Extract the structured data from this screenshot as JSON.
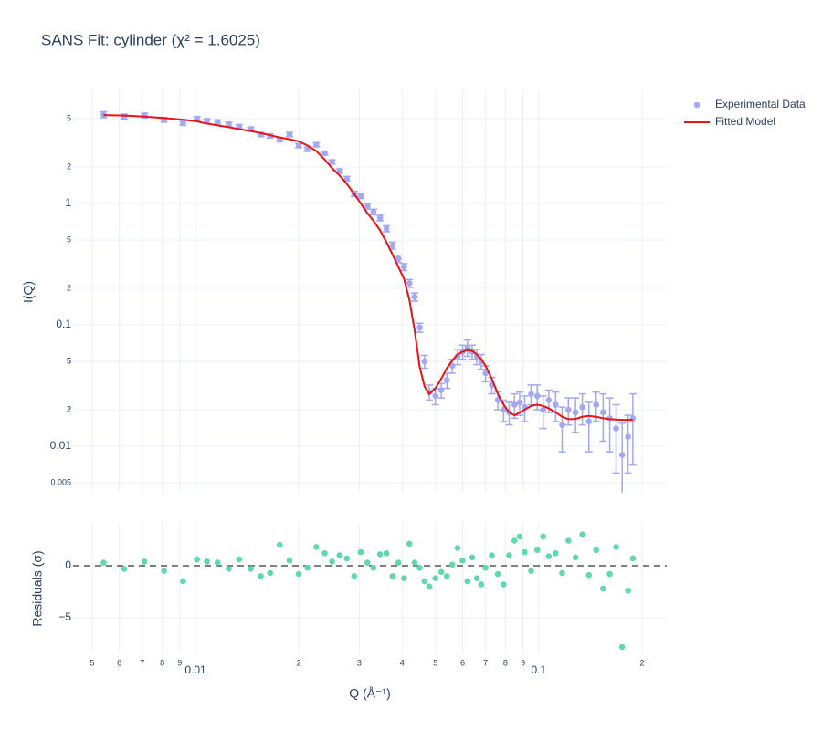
{
  "chart_data": [
    {
      "type": "scatter",
      "title": "SANS Fit: cylinder (χ² = 1.6025)",
      "ylabel": "I(Q)",
      "xscale": "log",
      "yscale": "log",
      "grid": true,
      "legend": "top-right-outside",
      "xlim": [
        0.0044,
        0.236
      ],
      "ylim": [
        0.00414,
        8.7
      ],
      "yticks": [
        0.005,
        {
          "value": 0.02,
          "label": "2"
        },
        {
          "value": 0.05,
          "label": "5"
        },
        0.01,
        {
          "value": 0.02,
          "label": "2"
        },
        {
          "value": 0.05,
          "label": "5"
        },
        0.1,
        {
          "value": 0.2,
          "label": "2"
        },
        {
          "value": 0.5,
          "label": "5"
        },
        1,
        2,
        5
      ],
      "x": [
        0.0054,
        0.0062,
        0.0071,
        0.0081,
        0.0092,
        0.0101,
        0.0108,
        0.0116,
        0.0125,
        0.0134,
        0.0145,
        0.0155,
        0.0165,
        0.0176,
        0.0188,
        0.02,
        0.0212,
        0.0225,
        0.0238,
        0.025,
        0.0263,
        0.0276,
        0.029,
        0.0303,
        0.0317,
        0.033,
        0.0345,
        0.036,
        0.0375,
        0.039,
        0.0405,
        0.042,
        0.0435,
        0.045,
        0.0465,
        0.048,
        0.05,
        0.052,
        0.054,
        0.056,
        0.058,
        0.06,
        0.062,
        0.064,
        0.066,
        0.068,
        0.07,
        0.073,
        0.076,
        0.079,
        0.082,
        0.085,
        0.088,
        0.091,
        0.095,
        0.099,
        0.103,
        0.107,
        0.112,
        0.117,
        0.122,
        0.128,
        0.134,
        0.14,
        0.147,
        0.154,
        0.161,
        0.168,
        0.175,
        0.182,
        0.188
      ],
      "series": [
        {
          "name": "Experimental Data",
          "mode": "markers",
          "color": "#a3a7f4",
          "values": [
            5.4,
            5.2,
            5.3,
            4.9,
            4.6,
            5.0,
            4.8,
            4.7,
            4.5,
            4.3,
            4.1,
            3.7,
            3.6,
            3.35,
            3.7,
            3.0,
            2.8,
            3.05,
            2.6,
            2.2,
            1.85,
            1.6,
            1.2,
            1.15,
            0.95,
            0.85,
            0.76,
            0.62,
            0.45,
            0.35,
            0.3,
            0.22,
            0.17,
            0.095,
            0.05,
            0.028,
            0.026,
            0.029,
            0.035,
            0.046,
            0.055,
            0.06,
            0.065,
            0.06,
            0.055,
            0.05,
            0.04,
            0.032,
            0.024,
            0.02,
            0.019,
            0.022,
            0.023,
            0.021,
            0.027,
            0.026,
            0.02,
            0.024,
            0.022,
            0.015,
            0.02,
            0.019,
            0.021,
            0.016,
            0.022,
            0.019,
            0.017,
            0.014,
            0.0085,
            0.012,
            0.017
          ],
          "errors": [
            0.3,
            0.25,
            0.25,
            0.22,
            0.2,
            0.2,
            0.2,
            0.18,
            0.18,
            0.17,
            0.16,
            0.15,
            0.14,
            0.13,
            0.15,
            0.12,
            0.11,
            0.12,
            0.1,
            0.09,
            0.08,
            0.07,
            0.06,
            0.055,
            0.05,
            0.045,
            0.04,
            0.035,
            0.03,
            0.025,
            0.02,
            0.016,
            0.013,
            0.008,
            0.006,
            0.004,
            0.004,
            0.004,
            0.005,
            0.006,
            0.008,
            0.008,
            0.01,
            0.008,
            0.008,
            0.007,
            0.006,
            0.005,
            0.004,
            0.004,
            0.004,
            0.005,
            0.005,
            0.005,
            0.005,
            0.006,
            0.006,
            0.005,
            0.006,
            0.006,
            0.005,
            0.006,
            0.006,
            0.007,
            0.006,
            0.008,
            0.008,
            0.008,
            0.007,
            0.006,
            0.01
          ]
        },
        {
          "name": "Fitted Model",
          "mode": "lines",
          "color": "#ee1111",
          "values": [
            5.35,
            5.3,
            5.2,
            5.05,
            4.9,
            4.75,
            4.55,
            4.4,
            4.25,
            4.1,
            3.95,
            3.8,
            3.65,
            3.5,
            3.38,
            3.25,
            3.0,
            2.7,
            2.3,
            1.95,
            1.7,
            1.45,
            1.2,
            1.0,
            0.83,
            0.72,
            0.6,
            0.48,
            0.38,
            0.3,
            0.24,
            0.16,
            0.09,
            0.045,
            0.031,
            0.027,
            0.03,
            0.036,
            0.044,
            0.051,
            0.057,
            0.06,
            0.062,
            0.061,
            0.057,
            0.052,
            0.046,
            0.036,
            0.027,
            0.022,
            0.019,
            0.018,
            0.019,
            0.02,
            0.0215,
            0.022,
            0.0215,
            0.0205,
            0.019,
            0.0175,
            0.0167,
            0.0168,
            0.0175,
            0.0178,
            0.0175,
            0.017,
            0.0167,
            0.0166,
            0.0165,
            0.0165,
            0.0165
          ]
        }
      ]
    },
    {
      "type": "scatter",
      "xlabel": "Q (Å⁻¹)",
      "ylabel": "Residuals (σ)",
      "xscale": "log",
      "grid": true,
      "xlim": [
        0.0044,
        0.236
      ],
      "ylim": [
        -8.5,
        4.2
      ],
      "xticks": [
        {
          "value": 0.005,
          "label": "5"
        },
        {
          "value": 0.006,
          "label": "6"
        },
        {
          "value": 0.007,
          "label": "7"
        },
        {
          "value": 0.008,
          "label": "8"
        },
        {
          "value": 0.009,
          "label": "9"
        },
        0.01,
        {
          "value": 0.02,
          "label": "2"
        },
        {
          "value": 0.03,
          "label": "3"
        },
        {
          "value": 0.04,
          "label": "4"
        },
        {
          "value": 0.05,
          "label": "5"
        },
        {
          "value": 0.06,
          "label": "6"
        },
        {
          "value": 0.07,
          "label": "7"
        },
        {
          "value": 0.08,
          "label": "8"
        },
        {
          "value": 0.09,
          "label": "9"
        },
        0.1,
        {
          "value": 0.2,
          "label": "2"
        }
      ],
      "yticks": [
        {
          "value": -5,
          "label": "−5"
        },
        0
      ],
      "reference_line": {
        "y": 0,
        "color": "#555555",
        "dash": true
      },
      "x": [
        0.0054,
        0.0062,
        0.0071,
        0.0081,
        0.0092,
        0.0101,
        0.0108,
        0.0116,
        0.0125,
        0.0134,
        0.0145,
        0.0155,
        0.0165,
        0.0176,
        0.0188,
        0.02,
        0.0212,
        0.0225,
        0.0238,
        0.025,
        0.0263,
        0.0276,
        0.029,
        0.0303,
        0.0317,
        0.033,
        0.0345,
        0.036,
        0.0375,
        0.039,
        0.0405,
        0.042,
        0.0435,
        0.045,
        0.0465,
        0.048,
        0.05,
        0.052,
        0.054,
        0.056,
        0.058,
        0.06,
        0.062,
        0.064,
        0.066,
        0.068,
        0.07,
        0.073,
        0.076,
        0.079,
        0.082,
        0.085,
        0.088,
        0.091,
        0.095,
        0.099,
        0.103,
        0.107,
        0.112,
        0.117,
        0.122,
        0.128,
        0.134,
        0.14,
        0.147,
        0.154,
        0.161,
        0.168,
        0.175,
        0.182,
        0.188
      ],
      "series": [
        {
          "mode": "markers",
          "color": "#5fd9ab",
          "values": [
            0.3,
            -0.3,
            0.4,
            -0.5,
            -1.5,
            0.6,
            0.4,
            0.3,
            -0.3,
            0.6,
            -0.3,
            -1.0,
            -0.7,
            2.0,
            0.5,
            -0.8,
            -0.2,
            1.8,
            1.2,
            0.4,
            1.0,
            0.7,
            -1.0,
            1.3,
            0.3,
            -0.2,
            1.1,
            1.2,
            -1.0,
            0.3,
            -1.2,
            2.1,
            0.3,
            -0.2,
            -1.5,
            -2.0,
            -1.2,
            -0.6,
            -1.0,
            0.1,
            1.7,
            0.5,
            -1.5,
            0.8,
            -1.2,
            -1.8,
            -0.2,
            1.0,
            -0.8,
            -1.8,
            1.0,
            2.4,
            2.8,
            1.3,
            -0.5,
            1.5,
            2.8,
            0.9,
            1.2,
            -0.7,
            2.4,
            0.8,
            3.0,
            -0.9,
            1.5,
            -2.2,
            -0.8,
            1.8,
            -7.8,
            -2.4,
            0.7
          ]
        }
      ]
    }
  ]
}
